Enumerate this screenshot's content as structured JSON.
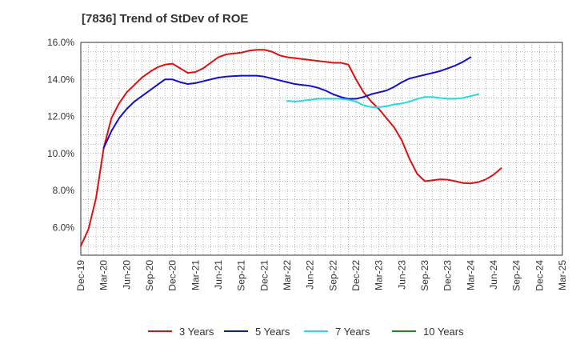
{
  "chart_data": {
    "type": "line",
    "title": "[7836]  Trend of StDev of ROE",
    "xlabel": "",
    "ylabel": "",
    "x_start": "Dec-19",
    "x_step_months": 1,
    "x_ticks": [
      "Dec-19",
      "Mar-20",
      "Jun-20",
      "Sep-20",
      "Dec-20",
      "Mar-21",
      "Jun-21",
      "Sep-21",
      "Dec-21",
      "Mar-22",
      "Jun-22",
      "Sep-22",
      "Dec-22",
      "Mar-23",
      "Jun-23",
      "Sep-23",
      "Dec-23",
      "Mar-24",
      "Jun-24",
      "Sep-24",
      "Dec-24",
      "Mar-25"
    ],
    "y_ticks": [
      "6.0%",
      "8.0%",
      "10.0%",
      "12.0%",
      "14.0%",
      "16.0%"
    ],
    "ylim": [
      4.5,
      16.0
    ],
    "grid": true,
    "legend_position": "bottom",
    "series": [
      {
        "name": "3 Years",
        "color": "#dd1111",
        "start": "Dec-19",
        "values": [
          5.0,
          5.9,
          7.6,
          10.3,
          11.9,
          12.7,
          13.3,
          13.7,
          14.1,
          14.4,
          14.65,
          14.8,
          14.85,
          14.6,
          14.35,
          14.4,
          14.6,
          14.9,
          15.2,
          15.35,
          15.4,
          15.45,
          15.55,
          15.6,
          15.6,
          15.5,
          15.3,
          15.2,
          15.15,
          15.1,
          15.05,
          15.0,
          14.95,
          14.9,
          14.9,
          14.8,
          14.0,
          13.3,
          12.8,
          12.4,
          11.9,
          11.4,
          10.7,
          9.7,
          8.9,
          8.5,
          8.55,
          8.6,
          8.58,
          8.5,
          8.4,
          8.38,
          8.45,
          8.6,
          8.85,
          9.2
        ]
      },
      {
        "name": "5 Years",
        "color": "#1111cc",
        "start": "Mar-20",
        "values": [
          10.3,
          11.2,
          11.9,
          12.4,
          12.8,
          13.1,
          13.4,
          13.7,
          14.0,
          14.0,
          13.85,
          13.75,
          13.8,
          13.9,
          14.0,
          14.1,
          14.15,
          14.18,
          14.2,
          14.2,
          14.2,
          14.15,
          14.05,
          13.95,
          13.85,
          13.75,
          13.7,
          13.65,
          13.55,
          13.4,
          13.2,
          13.05,
          12.95,
          12.95,
          13.05,
          13.2,
          13.3,
          13.4,
          13.6,
          13.85,
          14.05,
          14.15,
          14.25,
          14.35,
          14.45,
          14.6,
          14.75,
          14.95,
          15.2
        ]
      },
      {
        "name": "7 Years",
        "color": "#22dddd",
        "start": "Mar-22",
        "values": [
          12.85,
          12.8,
          12.85,
          12.9,
          12.95,
          12.95,
          12.95,
          12.95,
          12.9,
          12.8,
          12.6,
          12.5,
          12.5,
          12.55,
          12.65,
          12.7,
          12.8,
          12.95,
          13.05,
          13.05,
          13.0,
          12.95,
          12.95,
          13.0,
          13.1,
          13.2
        ]
      },
      {
        "name": "10 Years",
        "color": "#228822",
        "start": "Dec-24",
        "values": []
      }
    ]
  }
}
